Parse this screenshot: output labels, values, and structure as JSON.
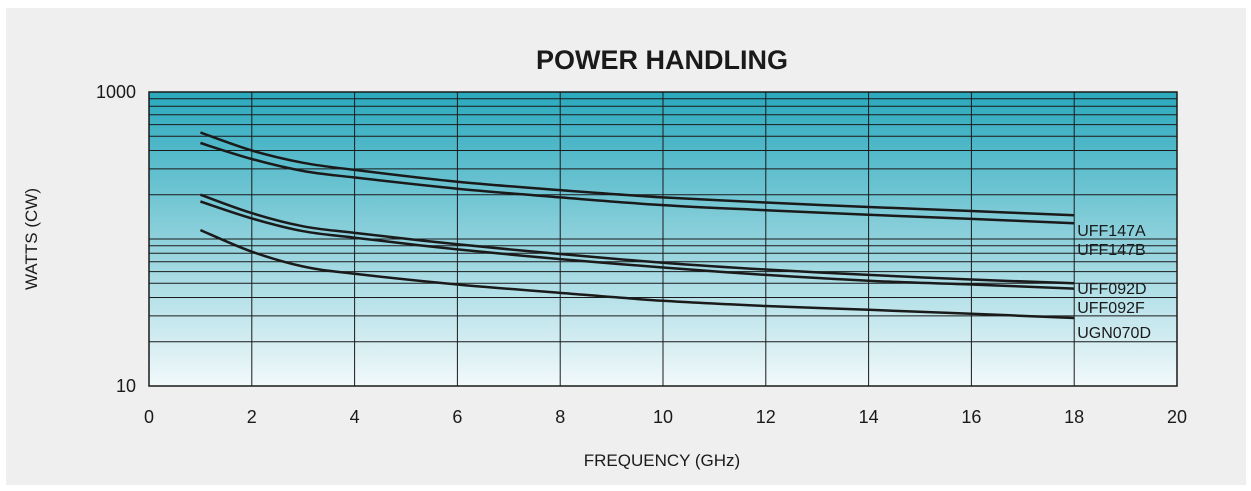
{
  "chart_data": {
    "type": "line",
    "title": "POWER HANDLING",
    "xlabel": "FREQUENCY (GHz)",
    "ylabel": "WATTS (CW)",
    "xlim": [
      0,
      20
    ],
    "ylim": [
      10,
      1000
    ],
    "yscale": "log",
    "grid": true,
    "x_ticks": [
      0,
      2,
      4,
      6,
      8,
      10,
      12,
      14,
      16,
      18,
      20
    ],
    "y_ticks": [
      10,
      1000
    ],
    "colors": {
      "plot_top": "#2aa9bd",
      "plot_bottom": "#f2f9fb",
      "line": "#1a1a1a",
      "background": "#efefef"
    },
    "series": [
      {
        "name": "UFF147A",
        "x": [
          1,
          2,
          3,
          4,
          6,
          8,
          10,
          12,
          14,
          16,
          18
        ],
        "y": [
          530,
          400,
          330,
          295,
          245,
          215,
          192,
          177,
          165,
          155,
          145
        ]
      },
      {
        "name": "UFF147B",
        "x": [
          1,
          2,
          3,
          4,
          6,
          8,
          10,
          12,
          14,
          16,
          18
        ],
        "y": [
          450,
          350,
          290,
          262,
          220,
          192,
          170,
          157,
          146,
          137,
          128
        ]
      },
      {
        "name": "UFF092D",
        "x": [
          1,
          2,
          3,
          4,
          6,
          8,
          10,
          12,
          14,
          16,
          18
        ],
        "y": [
          200,
          150,
          122,
          110,
          92,
          79,
          69,
          62,
          57,
          53,
          50
        ]
      },
      {
        "name": "UFF092F",
        "x": [
          1,
          2,
          3,
          4,
          6,
          8,
          10,
          12,
          14,
          16,
          18
        ],
        "y": [
          180,
          138,
          113,
          102,
          85,
          73,
          64,
          57,
          52,
          49,
          46
        ]
      },
      {
        "name": "UGN070D",
        "x": [
          1,
          2,
          3,
          4,
          6,
          8,
          10,
          12,
          14,
          16,
          18
        ],
        "y": [
          115,
          82,
          65,
          58,
          49,
          43,
          38,
          35,
          33,
          31,
          29
        ]
      }
    ]
  }
}
